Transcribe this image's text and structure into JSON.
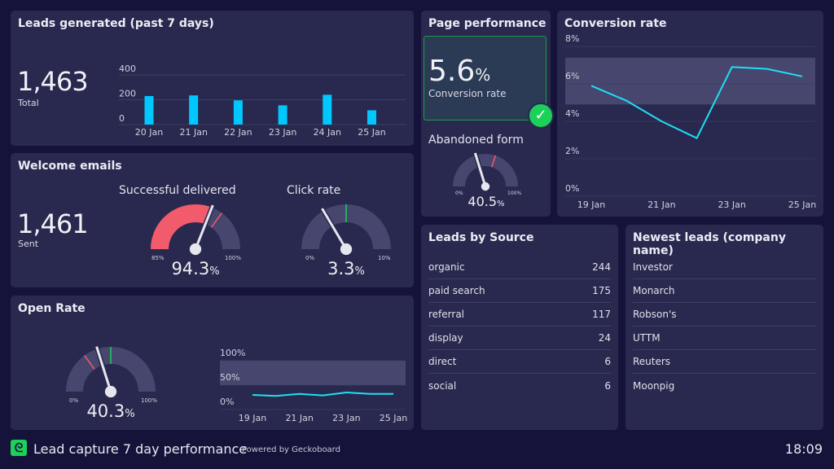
{
  "colors": {
    "background": "#16133b",
    "panel": "#29294f",
    "bar": "#00c8ff",
    "line": "#1ee0f0",
    "red": "#f25b6b",
    "green": "#1cd15a",
    "track": "#46466e"
  },
  "leads": {
    "title": "Leads generated (past 7 days)",
    "total": "1,463",
    "total_label": "Total"
  },
  "welcome": {
    "title": "Welcome emails",
    "sent": "1,461",
    "sent_label": "Sent",
    "delivered": {
      "label": "Successful delivered",
      "value": "94.3",
      "unit": "%",
      "min_label": "85%",
      "max_label": "100%"
    },
    "click": {
      "label": "Click rate",
      "value": "3.3",
      "unit": "%",
      "min_label": "0%",
      "max_label": "10%"
    }
  },
  "open_rate": {
    "title": "Open Rate",
    "value": "40.3",
    "unit": "%",
    "min_label": "0%",
    "max_label": "100%"
  },
  "page_perf": {
    "title": "Page performance",
    "conversion_value": "5.6",
    "unit": "%",
    "conversion_label": "Conversion rate",
    "status_icon": "check-circle-icon",
    "abandoned": {
      "label": "Abandoned form",
      "value": "40.5",
      "unit": "%",
      "min_label": "0%",
      "max_label": "100%"
    }
  },
  "conversion": {
    "title": "Conversion rate"
  },
  "sources": {
    "title": "Leads by Source",
    "items": [
      {
        "name": "organic",
        "value": "244"
      },
      {
        "name": "paid search",
        "value": "175"
      },
      {
        "name": "referral",
        "value": "117"
      },
      {
        "name": "display",
        "value": "24"
      },
      {
        "name": "direct",
        "value": "6"
      },
      {
        "name": "social",
        "value": "6"
      }
    ]
  },
  "newest": {
    "title": "Newest leads (company name)",
    "items": [
      "Investor",
      "Monarch",
      "Robson's",
      "UTTM",
      "Reuters",
      "Moonpig"
    ]
  },
  "footer": {
    "title": "Lead capture 7 day performance",
    "powered": "Powered by Geckoboard",
    "time": "18:09"
  },
  "chart_data": [
    {
      "type": "bar",
      "categories": [
        "20 Jan",
        "21 Jan",
        "22 Jan",
        "23 Jan",
        "24 Jan",
        "25 Jan"
      ],
      "values": [
        230,
        235,
        195,
        155,
        240,
        115
      ],
      "yticks": [
        "400",
        "200",
        "0"
      ],
      "ylim": [
        0,
        400
      ]
    },
    {
      "type": "line",
      "x": [
        "19 Jan",
        "20 Jan",
        "21 Jan",
        "22 Jan",
        "23 Jan",
        "24 Jan",
        "25 Jan"
      ],
      "xticks": [
        "19 Jan",
        "21 Jan",
        "23 Jan",
        "25 Jan"
      ],
      "values": [
        5.9,
        5.1,
        4.0,
        3.1,
        6.9,
        6.8,
        6.4
      ],
      "yticks": [
        "8%",
        "6%",
        "4%",
        "2%",
        "0%"
      ],
      "ylim": [
        0,
        8
      ],
      "target_band": [
        4.9,
        7.4
      ]
    },
    {
      "type": "line",
      "x": [
        "19 Jan",
        "20 Jan",
        "21 Jan",
        "22 Jan",
        "23 Jan",
        "24 Jan",
        "25 Jan"
      ],
      "xticks": [
        "19 Jan",
        "21 Jan",
        "23 Jan",
        "25 Jan"
      ],
      "values": [
        30,
        28,
        32,
        29,
        35,
        32,
        32
      ],
      "yticks": [
        "100%",
        "50%",
        "0%"
      ],
      "ylim": [
        0,
        100
      ],
      "target_band": [
        50,
        100
      ]
    },
    {
      "type": "gauge",
      "name": "delivered",
      "min": 85,
      "max": 100,
      "value": 94.3,
      "fill": "red",
      "markers": [
        {
          "at": 95.5,
          "color": "red"
        }
      ]
    },
    {
      "type": "gauge",
      "name": "click",
      "min": 0,
      "max": 10,
      "value": 3.3,
      "markers": [
        {
          "at": 5,
          "color": "green"
        }
      ]
    },
    {
      "type": "gauge",
      "name": "abandoned",
      "min": 0,
      "max": 100,
      "value": 40.5,
      "markers": [
        {
          "at": 60,
          "color": "red"
        }
      ]
    },
    {
      "type": "gauge",
      "name": "open",
      "min": 0,
      "max": 100,
      "value": 40.3,
      "markers": [
        {
          "at": 30,
          "color": "red"
        },
        {
          "at": 50,
          "color": "green"
        }
      ]
    }
  ]
}
